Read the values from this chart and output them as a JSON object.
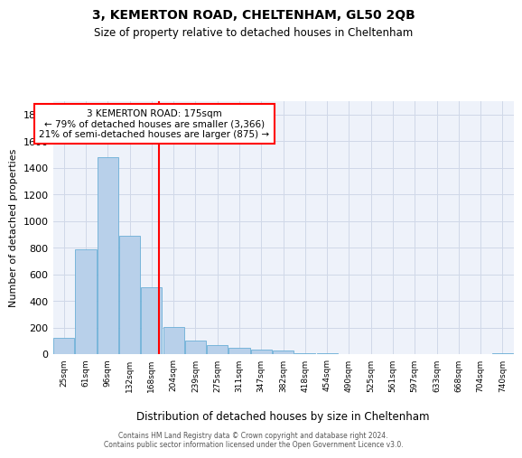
{
  "title1": "3, KEMERTON ROAD, CHELTENHAM, GL50 2QB",
  "title2": "Size of property relative to detached houses in Cheltenham",
  "xlabel": "Distribution of detached houses by size in Cheltenham",
  "ylabel": "Number of detached properties",
  "categories": [
    "25sqm",
    "61sqm",
    "96sqm",
    "132sqm",
    "168sqm",
    "204sqm",
    "239sqm",
    "275sqm",
    "311sqm",
    "347sqm",
    "382sqm",
    "418sqm",
    "454sqm",
    "490sqm",
    "525sqm",
    "561sqm",
    "597sqm",
    "633sqm",
    "668sqm",
    "704sqm",
    "740sqm"
  ],
  "values": [
    120,
    790,
    1480,
    890,
    500,
    205,
    100,
    65,
    45,
    35,
    25,
    10,
    10,
    0,
    0,
    0,
    0,
    0,
    0,
    0,
    10
  ],
  "bar_color": "#b8d0ea",
  "bar_edge_color": "#6aaed6",
  "ylim": [
    0,
    1900
  ],
  "yticks": [
    0,
    200,
    400,
    600,
    800,
    1000,
    1200,
    1400,
    1600,
    1800
  ],
  "red_line_x": 4.35,
  "ann_line1": "3 KEMERTON ROAD: 175sqm",
  "ann_line2": "← 79% of detached houses are smaller (3,366)",
  "ann_line3": "21% of semi-detached houses are larger (875) →",
  "footer1": "Contains HM Land Registry data © Crown copyright and database right 2024.",
  "footer2": "Contains public sector information licensed under the Open Government Licence v3.0.",
  "grid_color": "#d0d8e8",
  "background_color": "#eef2fa",
  "title1_fontsize": 10,
  "title2_fontsize": 8.5
}
